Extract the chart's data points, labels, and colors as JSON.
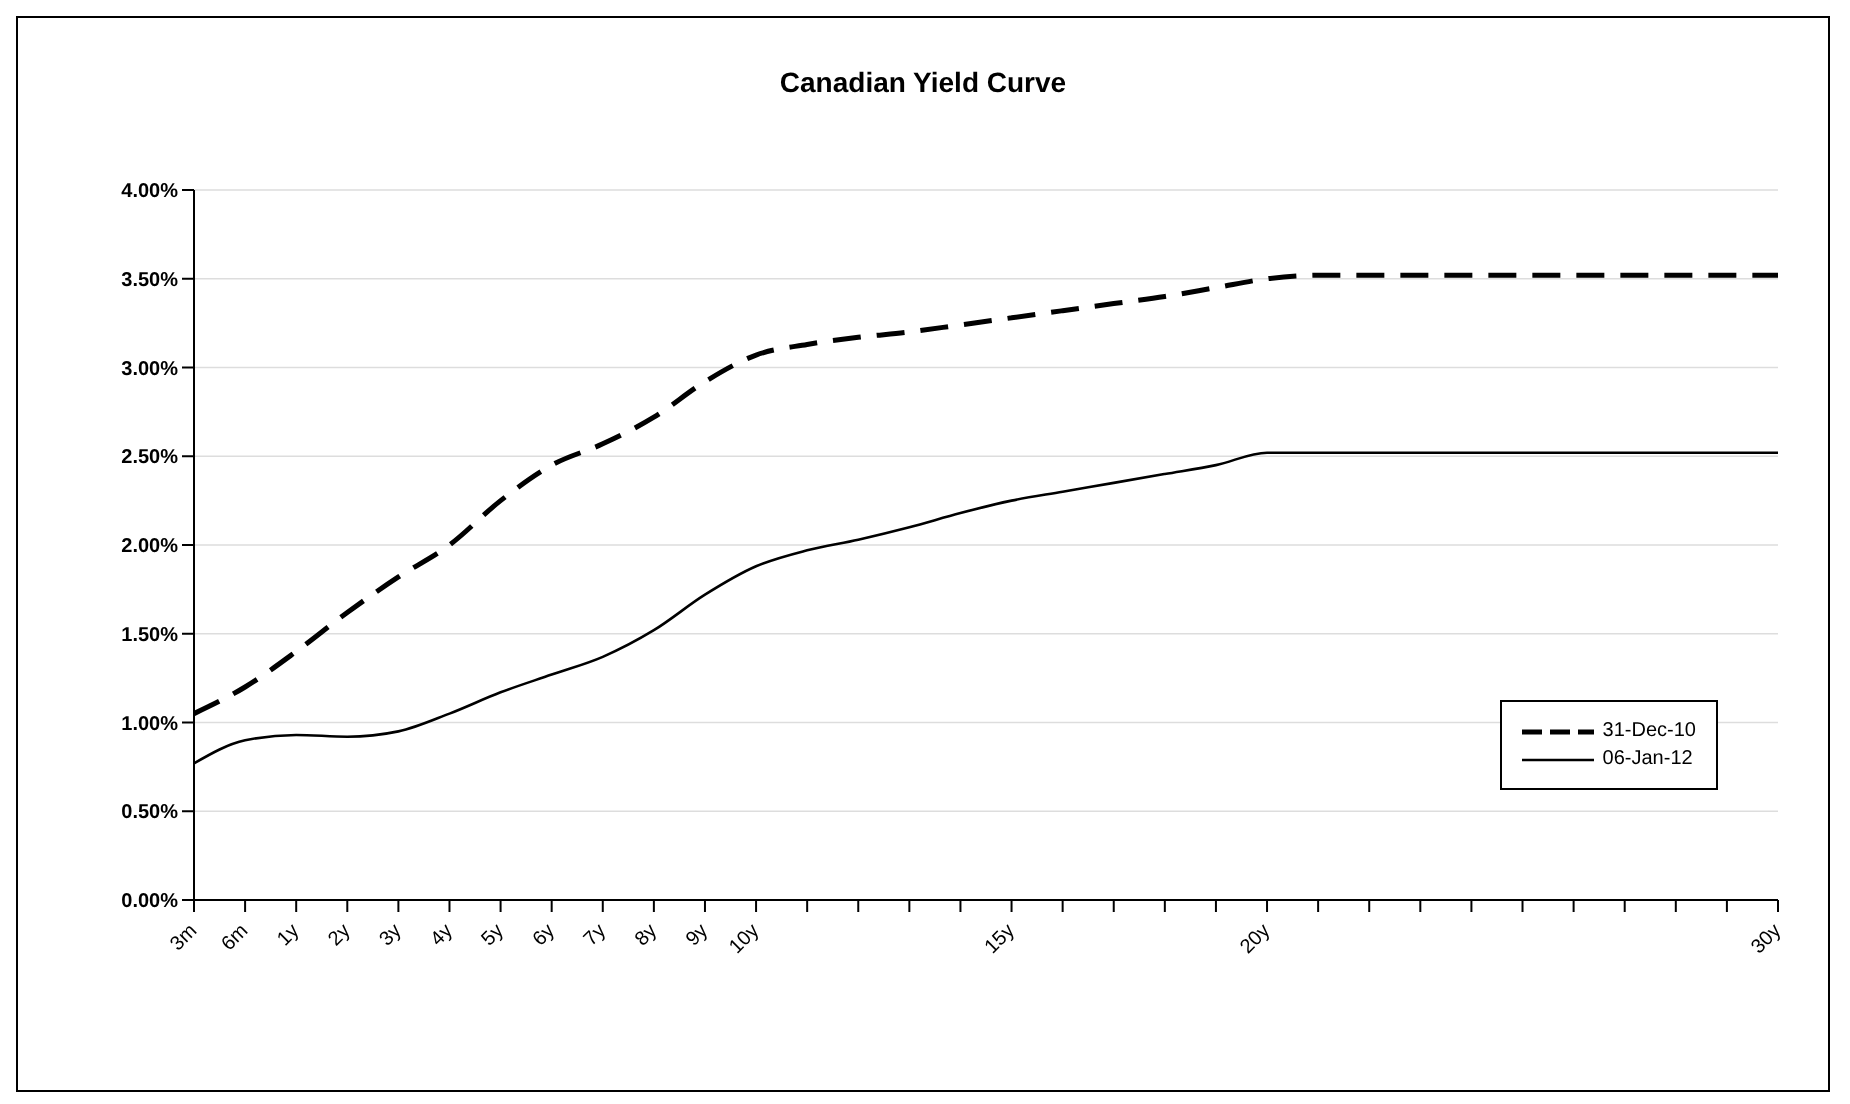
{
  "chart_data": {
    "type": "line",
    "title": "Canadian Yield Curve",
    "categories": [
      "3m",
      "6m",
      "1y",
      "2y",
      "3y",
      "4y",
      "5y",
      "6y",
      "7y",
      "8y",
      "9y",
      "10y",
      null,
      null,
      null,
      null,
      "15y",
      null,
      null,
      null,
      null,
      "20y",
      null,
      null,
      null,
      null,
      null,
      null,
      null,
      null,
      null,
      "30y"
    ],
    "series": [
      {
        "name": "31-Dec-10",
        "color": "#000000",
        "line_style": "dashed",
        "values": [
          1.05,
          1.2,
          1.4,
          1.62,
          1.82,
          2.0,
          2.25,
          2.45,
          2.57,
          2.72,
          2.92,
          3.07,
          3.13,
          3.17,
          3.2,
          3.24,
          3.28,
          3.32,
          3.36,
          3.4,
          3.45,
          3.5,
          3.52,
          3.52,
          3.52,
          3.52,
          3.52,
          3.52,
          3.52,
          3.52,
          3.52,
          3.52
        ]
      },
      {
        "name": "06-Jan-12",
        "color": "#000000",
        "line_style": "solid",
        "values": [
          0.77,
          0.9,
          0.93,
          0.92,
          0.95,
          1.05,
          1.17,
          1.27,
          1.37,
          1.52,
          1.72,
          1.88,
          1.97,
          2.03,
          2.1,
          2.18,
          2.25,
          2.3,
          2.35,
          2.4,
          2.45,
          2.52,
          2.52,
          2.52,
          2.52,
          2.52,
          2.52,
          2.52,
          2.52,
          2.52,
          2.52,
          2.52
        ]
      }
    ],
    "ylim": [
      0,
      4
    ],
    "yticks": [
      {
        "value": 0,
        "label": "0.00%"
      },
      {
        "value": 0.5,
        "label": "0.50%"
      },
      {
        "value": 1,
        "label": "1.00%"
      },
      {
        "value": 1.5,
        "label": "1.50%"
      },
      {
        "value": 2,
        "label": "2.00%"
      },
      {
        "value": 2.5,
        "label": "2.50%"
      },
      {
        "value": 3,
        "label": "3.00%"
      },
      {
        "value": 3.5,
        "label": "3.50%"
      },
      {
        "value": 4,
        "label": "4.00%"
      }
    ],
    "grid": "y",
    "legend": "bottom right",
    "marker": "none"
  }
}
